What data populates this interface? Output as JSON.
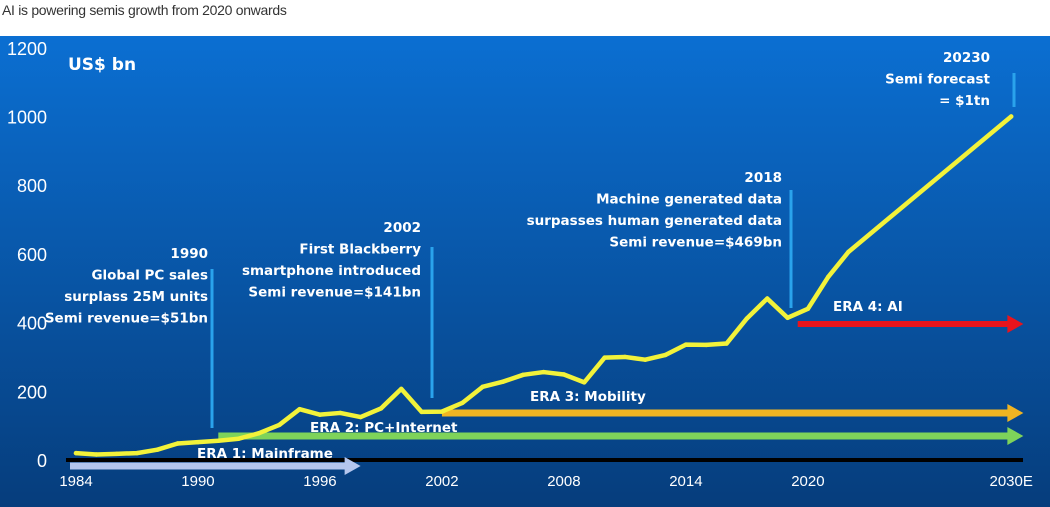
{
  "title": "AI is powering semis growth from 2020 onwards",
  "chart_data": {
    "type": "line",
    "title": "",
    "ylabel": "US$ bn",
    "ylim": [
      0,
      1200
    ],
    "yticks": [
      "0",
      "200",
      "400",
      "600",
      "800",
      "1000",
      "1200"
    ],
    "xlim": [
      1984,
      2030
    ],
    "xticks": [
      {
        "value": 1984,
        "label": "1984"
      },
      {
        "value": 1990,
        "label": "1990"
      },
      {
        "value": 1996,
        "label": "1996"
      },
      {
        "value": 2002,
        "label": "2002"
      },
      {
        "value": 2008,
        "label": "2008"
      },
      {
        "value": 2014,
        "label": "2014"
      },
      {
        "value": 2020,
        "label": "2020"
      },
      {
        "value": 2030,
        "label": "2030E"
      }
    ],
    "grid": false,
    "series": [
      {
        "color": "#f2f23a",
        "x": [
          1984,
          1985,
          1986,
          1987,
          1988,
          1989,
          1990,
          1991,
          1992,
          1993,
          1994,
          1995,
          1996,
          1997,
          1998,
          1999,
          2000,
          2001,
          2002,
          2003,
          2004,
          2005,
          2006,
          2007,
          2008,
          2009,
          2010,
          2011,
          2012,
          2013,
          2014,
          2015,
          2016,
          2017,
          2018,
          2019,
          2020,
          2021,
          2022,
          2030
        ],
        "values": [
          20,
          16,
          18,
          20,
          30,
          48,
          52,
          56,
          62,
          78,
          102,
          148,
          132,
          137,
          125,
          150,
          207,
          140,
          141,
          166,
          213,
          228,
          248,
          256,
          249,
          226,
          298,
          300,
          292,
          306,
          336,
          335,
          339,
          412,
          470,
          414,
          440,
          533,
          606,
          1000
        ]
      }
    ],
    "eras": [
      {
        "label": "ERA 1: Mainframe",
        "start": 1984,
        "end": 1998,
        "color": "#b4c6ee"
      },
      {
        "label": "ERA 2: PC+Internet",
        "start": 1991,
        "end": 2030.6,
        "color": "#7ed35a"
      },
      {
        "label": "ERA 3: Mobility",
        "start": 2002,
        "end": 2030.6,
        "color": "#f0b422"
      },
      {
        "label": "ERA 4: AI",
        "start": 2019.5,
        "end": 2030.6,
        "color": "#e8141c"
      }
    ],
    "annotations": [
      {
        "year": 1990,
        "lines": [
          "1990",
          "Global PC sales",
          "surplass 25M units",
          "Semi revenue=$51bn"
        ]
      },
      {
        "year": 2002,
        "lines": [
          "2002",
          "First Blackberry",
          "smartphone introduced",
          "Semi revenue=$141bn"
        ]
      },
      {
        "year": 2018,
        "lines": [
          "2018",
          "Machine generated data",
          "surpasses human generated data",
          "Semi revenue=$469bn"
        ]
      },
      {
        "year": 2030,
        "lines": [
          "20230",
          "Semi forecast",
          "= $1tn"
        ]
      }
    ],
    "colors": {
      "background_top": "#0b6fd2",
      "background_bottom": "#063d7c",
      "marker_line": "#2aa3ec",
      "baseline": "#000000"
    }
  }
}
